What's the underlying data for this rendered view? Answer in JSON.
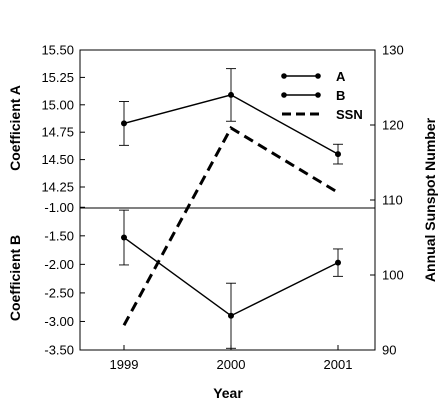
{
  "chart_data": {
    "type": "line",
    "x": [
      1999,
      2000,
      2001
    ],
    "x_tick_labels": [
      "1999",
      "2000",
      "2001"
    ],
    "xlabel": "Year",
    "panels": [
      {
        "ylabel": "Coefficient A",
        "ylim": [
          14.25,
          15.5
        ],
        "yticks": [
          "15.50",
          "15.25",
          "15.00",
          "14.75",
          "14.50",
          "14.25"
        ],
        "series": [
          {
            "name": "A",
            "values": [
              14.83,
              15.09,
              14.55
            ],
            "errors": [
              0.2,
              0.24,
              0.09
            ]
          }
        ]
      },
      {
        "ylabel": "Coefficient B",
        "ylim": [
          -3.5,
          -0.75
        ],
        "yticks": [
          "-1.00",
          "-1.50",
          "-2.00",
          "-2.50",
          "-3.00",
          "-3.50"
        ],
        "series": [
          {
            "name": "B",
            "values": [
              -1.53,
              -2.9,
              -1.97
            ],
            "errors": [
              0.48,
              0.57,
              0.24
            ]
          }
        ]
      }
    ],
    "right_axis": {
      "label": "Annual Sunspot Number",
      "ylim": [
        90,
        130
      ],
      "yticks": [
        "130",
        "120",
        "110",
        "100",
        "90"
      ],
      "series": [
        {
          "name": "SSN",
          "values": [
            93.3,
            119.6,
            111.0
          ]
        }
      ]
    },
    "legend": {
      "position": "top-right",
      "entries": [
        {
          "label": "A",
          "style": "solid-marker"
        },
        {
          "label": "B",
          "style": "solid-marker"
        },
        {
          "label": "SSN",
          "style": "dashed"
        }
      ]
    },
    "colors": {
      "lines": "#000000",
      "background": "#ffffff"
    }
  }
}
